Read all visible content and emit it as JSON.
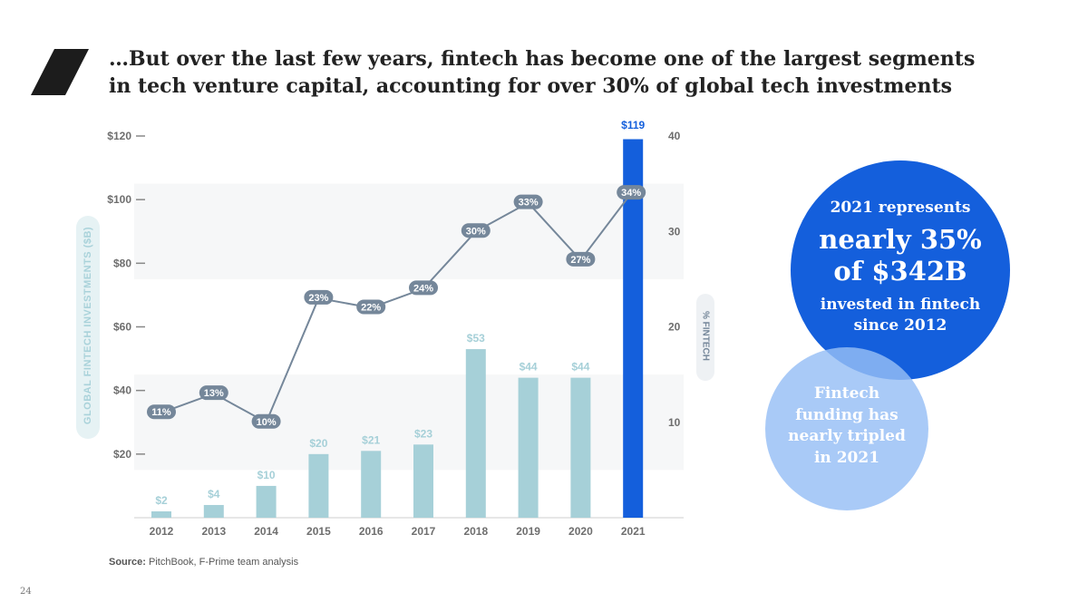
{
  "title": {
    "line1": "…But over the last few years, fintech has become one of the largest segments",
    "line2": "in tech venture capital, accounting for over 30% of global tech investments"
  },
  "colors": {
    "bar": "#a6d0d8",
    "bar_highlight": "#145fdc",
    "line": "#75879a",
    "pct_label_bg": "#75879a",
    "bubble_big": "#145fdc",
    "bubble_small": "#96bef5"
  },
  "chart_data": {
    "type": "bar",
    "categories": [
      "2012",
      "2013",
      "2014",
      "2015",
      "2016",
      "2017",
      "2018",
      "2019",
      "2020",
      "2021"
    ],
    "values": [
      2,
      4,
      10,
      20,
      21,
      23,
      53,
      44,
      44,
      119
    ],
    "value_labels": [
      "$2",
      "$4",
      "$10",
      "$20",
      "$21",
      "$23",
      "$53",
      "$44",
      "$44",
      "$119"
    ],
    "highlight_category": "2021",
    "ylabel": "GLOBAL FINTECH INVESTMENTS ($B)",
    "ylim": [
      0,
      120
    ],
    "yticks": [
      20,
      40,
      60,
      80,
      100,
      120
    ],
    "ytick_labels": [
      "$20",
      "$40",
      "$60",
      "$80",
      "$100",
      "$120"
    ],
    "secondary": {
      "type": "line",
      "ylabel": "% FINTECH",
      "ylim": [
        0,
        40
      ],
      "yticks": [
        10,
        20,
        30,
        40
      ],
      "ytick_labels": [
        "10",
        "20",
        "30",
        "40"
      ],
      "values": [
        11,
        13,
        10,
        23,
        22,
        24,
        30,
        33,
        27,
        34
      ],
      "value_labels": [
        "11%",
        "13%",
        "10%",
        "23%",
        "22%",
        "24%",
        "30%",
        "33%",
        "27%",
        "34%"
      ]
    }
  },
  "source": {
    "prefix": "Source:",
    "text": " PitchBook, F-Prime team analysis"
  },
  "callout_big": {
    "line1": "2021 represents",
    "line2a": "nearly 35%",
    "line2b": "of $342B",
    "line3a": "invested in fintech",
    "line3b": "since 2012"
  },
  "callout_small": {
    "text": "Fintech funding has nearly tripled in 2021"
  },
  "page_number": "24"
}
